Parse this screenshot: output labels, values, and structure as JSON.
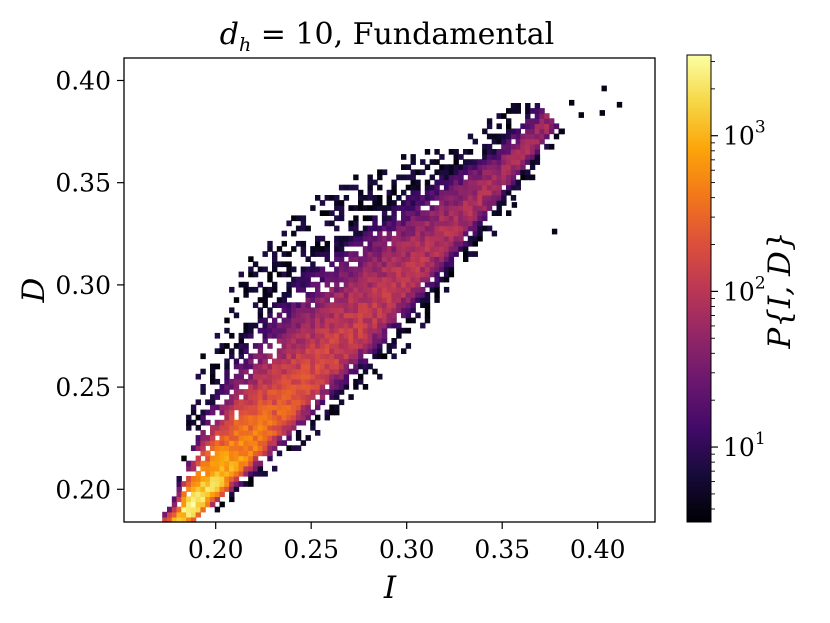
{
  "chart_data": {
    "type": "heatmap",
    "title": "d_h = 10, Fundamental",
    "title_parts": {
      "var": "d",
      "subscript": "h",
      "rest": " = 10, Fundamental"
    },
    "xlabel": "I",
    "ylabel": "D",
    "xlim": [
      0.152,
      0.43
    ],
    "ylim": [
      0.184,
      0.411
    ],
    "xticks": [
      0.2,
      0.25,
      0.3,
      0.35,
      0.4
    ],
    "xtick_labels": [
      "0.20",
      "0.25",
      "0.30",
      "0.35",
      "0.40"
    ],
    "yticks": [
      0.2,
      0.25,
      0.3,
      0.35,
      0.4
    ],
    "ytick_labels": [
      "0.20",
      "0.25",
      "0.30",
      "0.35",
      "0.40"
    ],
    "grid": false,
    "colorbar": {
      "label": "P{I, D}",
      "scale": "log",
      "range": [
        3.3,
        3300
      ],
      "ticks": [
        10,
        100,
        1000
      ],
      "tick_labels": [
        {
          "base": "10",
          "exp": "1"
        },
        {
          "base": "10",
          "exp": "2"
        },
        {
          "base": "10",
          "exp": "3"
        }
      ],
      "colormap": "inferno"
    },
    "bin_width": 0.0025,
    "density_model": {
      "description": "Joint density concentrated along the ridge from about (0.185, 0.188) to (0.37, 0.375); highest counts near I 0.19-0.21, D 0.19-0.21",
      "ridge_start": [
        0.185,
        0.188
      ],
      "ridge_end": [
        0.372,
        0.375
      ],
      "peak": [
        0.195,
        0.198
      ],
      "peak_count": 3000
    },
    "outliers": [
      [
        0.402,
        0.395
      ],
      [
        0.41,
        0.387
      ],
      [
        0.401,
        0.383
      ],
      [
        0.385,
        0.388
      ],
      [
        0.39,
        0.382
      ],
      [
        0.38,
        0.374
      ],
      [
        0.376,
        0.325
      ],
      [
        0.355,
        0.338
      ]
    ]
  }
}
